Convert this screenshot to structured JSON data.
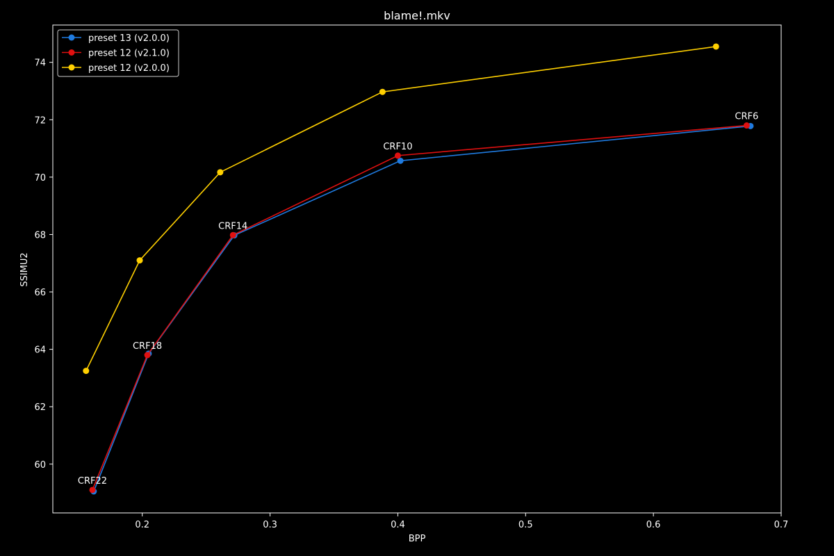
{
  "chart_data": {
    "type": "line",
    "title": "blame!.mkv",
    "xlabel": "BPP",
    "ylabel": "SSIMU2",
    "xlim": [
      0.13,
      0.7
    ],
    "ylim": [
      58.3,
      75.3
    ],
    "xticks": [
      0.2,
      0.3,
      0.4,
      0.5,
      0.6,
      0.7
    ],
    "xtick_labels": [
      "0.2",
      "0.3",
      "0.4",
      "0.5",
      "0.6",
      "0.7"
    ],
    "yticks": [
      60,
      62,
      64,
      66,
      68,
      70,
      72,
      74
    ],
    "ytick_labels": [
      "60",
      "62",
      "64",
      "66",
      "68",
      "70",
      "72",
      "74"
    ],
    "grid": false,
    "legend_position": "top-left",
    "series": [
      {
        "name": "preset 13 (v2.0.0)",
        "color": "#1f7be0",
        "x": [
          0.162,
          0.205,
          0.272,
          0.402,
          0.676
        ],
        "y": [
          59.05,
          63.85,
          67.97,
          70.57,
          71.78
        ]
      },
      {
        "name": "preset 12 (v2.1.0)",
        "color": "#e01010",
        "x": [
          0.161,
          0.204,
          0.271,
          0.4,
          0.673
        ],
        "y": [
          59.1,
          63.8,
          67.98,
          70.75,
          71.8
        ]
      },
      {
        "name": "preset 12 (v2.0.0)",
        "color": "#ffd000",
        "x": [
          0.156,
          0.198,
          0.261,
          0.388,
          0.649
        ],
        "y": [
          63.25,
          67.1,
          70.17,
          72.97,
          74.55
        ]
      }
    ],
    "annotations": [
      {
        "text": "CRF22",
        "x": 0.161,
        "y": 59.1
      },
      {
        "text": "CRF18",
        "x": 0.204,
        "y": 63.8
      },
      {
        "text": "CRF14",
        "x": 0.271,
        "y": 67.98
      },
      {
        "text": "CRF10",
        "x": 0.4,
        "y": 70.75
      },
      {
        "text": "CRF6",
        "x": 0.673,
        "y": 71.8
      }
    ]
  }
}
